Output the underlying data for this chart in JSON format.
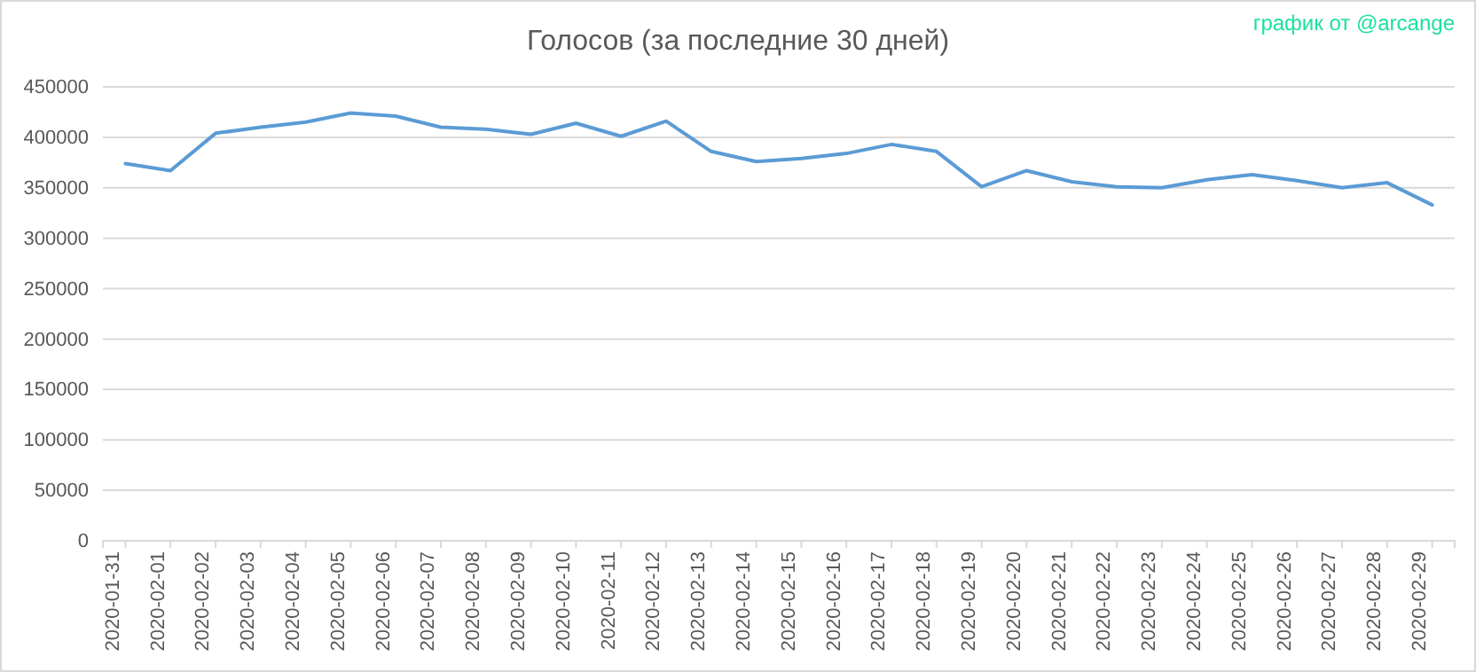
{
  "chart_data": {
    "type": "line",
    "title": "Голосов (за последние 30 дней)",
    "annotations": [
      "график от @arcange"
    ],
    "categories": [
      "2020-01-31",
      "2020-02-01",
      "2020-02-02",
      "2020-02-03",
      "2020-02-04",
      "2020-02-05",
      "2020-02-06",
      "2020-02-07",
      "2020-02-08",
      "2020-02-09",
      "2020-02-10",
      "2020-02-11",
      "2020-02-12",
      "2020-02-13",
      "2020-02-14",
      "2020-02-15",
      "2020-02-16",
      "2020-02-17",
      "2020-02-18",
      "2020-02-19",
      "2020-02-20",
      "2020-02-21",
      "2020-02-22",
      "2020-02-23",
      "2020-02-24",
      "2020-02-25",
      "2020-02-26",
      "2020-02-27",
      "2020-02-28",
      "2020-02-29"
    ],
    "series": [
      {
        "color": "#5b9bd5",
        "values": [
          374000,
          367000,
          404000,
          410000,
          415000,
          424000,
          421000,
          410000,
          408000,
          403000,
          414000,
          401000,
          416000,
          386000,
          376000,
          379000,
          384000,
          393000,
          386000,
          351000,
          367000,
          356000,
          351000,
          350000,
          358000,
          363000,
          357000,
          350000,
          355000,
          333000
        ]
      }
    ],
    "ylim": [
      0,
      450000
    ],
    "yticks": [
      0,
      50000,
      100000,
      150000,
      200000,
      250000,
      300000,
      350000,
      400000,
      450000
    ],
    "grid": "y",
    "marker": "none",
    "line_style": "solid"
  }
}
